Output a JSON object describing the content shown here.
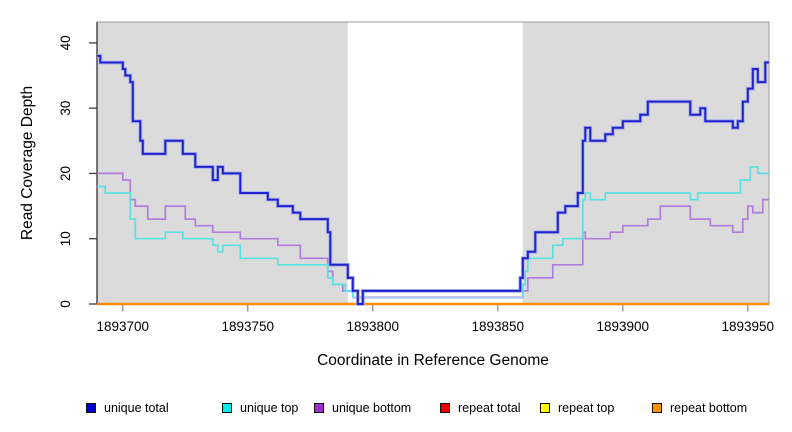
{
  "chart_data": {
    "type": "line",
    "subtype": "step-coverage",
    "title": "",
    "xlabel": "Coordinate in Reference Genome",
    "ylabel": "Read Coverage Depth",
    "xlim": [
      1893689.7,
      1893958.5
    ],
    "ylim": [
      0,
      40
    ],
    "x_ticks": [
      1893700,
      1893750,
      1893800,
      1893850,
      1893900,
      1893950
    ],
    "y_ticks": [
      0,
      10,
      20,
      30,
      40
    ],
    "grid": false,
    "panel_bg": "#dbdbdb",
    "highlight_region": {
      "start": 1893790,
      "end": 1893860,
      "color": "#ffffff"
    },
    "legend_position": "bottom",
    "series": [
      {
        "name": "unique total",
        "color": "#2222cc",
        "legend_color": "#0000cd",
        "step_points": [
          [
            1893689.7,
            38
          ],
          [
            1893691,
            37
          ],
          [
            1893700,
            36
          ],
          [
            1893701,
            35
          ],
          [
            1893703,
            34
          ],
          [
            1893704,
            28
          ],
          [
            1893707,
            25
          ],
          [
            1893708,
            23
          ],
          [
            1893717,
            25
          ],
          [
            1893724,
            23
          ],
          [
            1893729,
            21
          ],
          [
            1893736,
            19
          ],
          [
            1893738,
            21
          ],
          [
            1893740,
            20
          ],
          [
            1893747,
            17
          ],
          [
            1893758,
            16
          ],
          [
            1893762,
            15
          ],
          [
            1893768,
            14
          ],
          [
            1893771,
            13
          ],
          [
            1893782,
            11
          ],
          [
            1893783,
            6
          ],
          [
            1893790,
            4
          ],
          [
            1893792,
            2
          ],
          [
            1893794,
            0
          ],
          [
            1893796,
            2
          ],
          [
            1893859,
            4
          ],
          [
            1893860,
            7
          ],
          [
            1893862,
            8
          ],
          [
            1893865,
            11
          ],
          [
            1893874,
            14
          ],
          [
            1893877,
            15
          ],
          [
            1893882,
            17
          ],
          [
            1893884,
            25
          ],
          [
            1893885,
            27
          ],
          [
            1893887,
            25
          ],
          [
            1893893,
            26
          ],
          [
            1893896,
            27
          ],
          [
            1893900,
            28
          ],
          [
            1893907,
            29
          ],
          [
            1893910,
            31
          ],
          [
            1893927,
            29
          ],
          [
            1893931,
            30
          ],
          [
            1893933,
            28
          ],
          [
            1893944,
            27
          ],
          [
            1893946,
            28
          ],
          [
            1893948,
            31
          ],
          [
            1893950,
            33
          ],
          [
            1893952,
            36
          ],
          [
            1893954,
            34
          ],
          [
            1893957,
            37
          ]
        ]
      },
      {
        "name": "unique top",
        "color": "#58e2e2",
        "legend_color": "#00eeee",
        "step_points": [
          [
            1893689.7,
            18
          ],
          [
            1893693,
            17
          ],
          [
            1893703,
            13
          ],
          [
            1893705,
            10
          ],
          [
            1893717,
            11
          ],
          [
            1893724,
            10
          ],
          [
            1893736,
            9
          ],
          [
            1893738,
            8
          ],
          [
            1893740,
            9
          ],
          [
            1893747,
            7
          ],
          [
            1893762,
            6
          ],
          [
            1893782,
            4
          ],
          [
            1893784,
            3
          ],
          [
            1893789,
            2
          ],
          [
            1893792,
            1
          ],
          [
            1893860,
            3
          ],
          [
            1893861,
            5
          ],
          [
            1893862,
            7
          ],
          [
            1893872,
            9
          ],
          [
            1893876,
            10
          ],
          [
            1893884,
            16
          ],
          [
            1893885,
            17
          ],
          [
            1893887,
            16
          ],
          [
            1893893,
            17
          ],
          [
            1893927,
            16
          ],
          [
            1893930,
            17
          ],
          [
            1893947,
            19
          ],
          [
            1893951,
            21
          ],
          [
            1893954,
            20
          ]
        ]
      },
      {
        "name": "unique bottom",
        "color": "#b27edc",
        "legend_color": "#9932cc",
        "step_points": [
          [
            1893689.7,
            20
          ],
          [
            1893700,
            19
          ],
          [
            1893703,
            16
          ],
          [
            1893705,
            15
          ],
          [
            1893710,
            13
          ],
          [
            1893717,
            15
          ],
          [
            1893725,
            13
          ],
          [
            1893729,
            12
          ],
          [
            1893736,
            11
          ],
          [
            1893747,
            10
          ],
          [
            1893762,
            9
          ],
          [
            1893771,
            7
          ],
          [
            1893782,
            5
          ],
          [
            1893784,
            3
          ],
          [
            1893788,
            2
          ],
          [
            1893792,
            1
          ],
          [
            1893860,
            2
          ],
          [
            1893862,
            4
          ],
          [
            1893872,
            6
          ],
          [
            1893884,
            11
          ],
          [
            1893885,
            10
          ],
          [
            1893895,
            11
          ],
          [
            1893900,
            12
          ],
          [
            1893910,
            13
          ],
          [
            1893915,
            15
          ],
          [
            1893927,
            13
          ],
          [
            1893935,
            12
          ],
          [
            1893944,
            11
          ],
          [
            1893948,
            13
          ],
          [
            1893950,
            15
          ],
          [
            1893952,
            14
          ],
          [
            1893956,
            16
          ]
        ]
      },
      {
        "name": "repeat total",
        "color": "#e10000",
        "legend_color": "#ee0000",
        "step_points": [
          [
            1893689.7,
            0
          ]
        ]
      },
      {
        "name": "repeat top",
        "color": "#ffff00",
        "legend_color": "#ffff00",
        "step_points": [
          [
            1893689.7,
            0
          ]
        ]
      },
      {
        "name": "repeat bottom",
        "color": "#ff8c00",
        "legend_color": "#ff9100",
        "step_points": [
          [
            1893689.7,
            0
          ]
        ]
      }
    ]
  }
}
